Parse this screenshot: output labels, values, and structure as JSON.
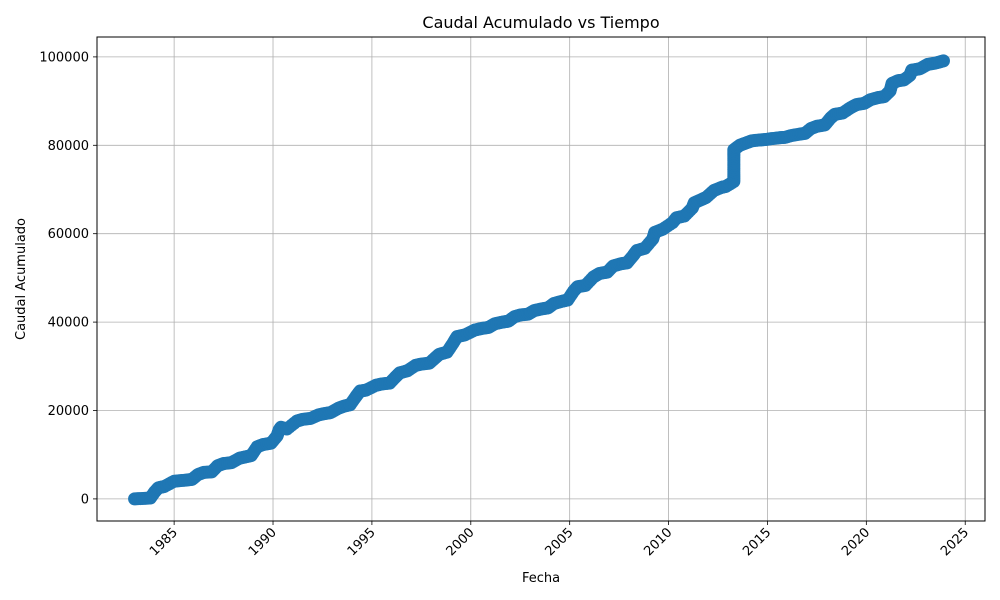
{
  "chart_data": {
    "type": "scatter",
    "title": "Caudal Acumulado vs Tiempo",
    "xlabel": "Fecha",
    "ylabel": "Caudal Acumulado",
    "x_ticks": [
      "1985",
      "1990",
      "1995",
      "2000",
      "2005",
      "2010",
      "2015",
      "2020",
      "2025"
    ],
    "y_ticks": [
      "0",
      "20000",
      "40000",
      "60000",
      "80000",
      "100000"
    ],
    "xlim": [
      1981.1,
      2026.0
    ],
    "ylim": [
      -5000,
      104500
    ],
    "grid": true,
    "marker_color": "#1f77b4",
    "series": [
      {
        "points": [
          [
            1983.0,
            0
          ],
          [
            1983.4,
            100
          ],
          [
            1983.8,
            200
          ],
          [
            1984.0,
            1500
          ],
          [
            1984.2,
            2500
          ],
          [
            1984.5,
            2800
          ],
          [
            1985.0,
            4000
          ],
          [
            1985.5,
            4200
          ],
          [
            1985.9,
            4400
          ],
          [
            1986.2,
            5500
          ],
          [
            1986.5,
            6000
          ],
          [
            1986.9,
            6100
          ],
          [
            1987.2,
            7500
          ],
          [
            1987.5,
            8000
          ],
          [
            1987.9,
            8200
          ],
          [
            1988.3,
            9200
          ],
          [
            1988.6,
            9500
          ],
          [
            1988.9,
            9800
          ],
          [
            1989.2,
            11800
          ],
          [
            1989.5,
            12300
          ],
          [
            1989.9,
            12600
          ],
          [
            1990.2,
            14200
          ],
          [
            1990.3,
            15500
          ],
          [
            1990.4,
            16200
          ],
          [
            1990.7,
            15800
          ],
          [
            1991.2,
            17600
          ],
          [
            1991.5,
            18000
          ],
          [
            1991.9,
            18200
          ],
          [
            1992.3,
            19000
          ],
          [
            1992.6,
            19300
          ],
          [
            1992.9,
            19500
          ],
          [
            1993.3,
            20500
          ],
          [
            1993.6,
            21000
          ],
          [
            1993.9,
            21300
          ],
          [
            1994.2,
            23200
          ],
          [
            1994.4,
            24400
          ],
          [
            1994.7,
            24600
          ],
          [
            1995.2,
            25700
          ],
          [
            1995.5,
            26000
          ],
          [
            1995.9,
            26200
          ],
          [
            1996.2,
            27600
          ],
          [
            1996.4,
            28500
          ],
          [
            1996.8,
            29000
          ],
          [
            1997.2,
            30200
          ],
          [
            1997.5,
            30500
          ],
          [
            1997.9,
            30700
          ],
          [
            1998.2,
            31900
          ],
          [
            1998.4,
            32700
          ],
          [
            1998.8,
            33200
          ],
          [
            1999.1,
            35200
          ],
          [
            1999.3,
            36700
          ],
          [
            1999.7,
            37100
          ],
          [
            2000.2,
            38200
          ],
          [
            2000.6,
            38600
          ],
          [
            2000.9,
            38800
          ],
          [
            2001.2,
            39600
          ],
          [
            2001.6,
            40000
          ],
          [
            2001.9,
            40200
          ],
          [
            2002.2,
            41200
          ],
          [
            2002.5,
            41600
          ],
          [
            2002.9,
            41800
          ],
          [
            2003.2,
            42600
          ],
          [
            2003.6,
            43000
          ],
          [
            2003.9,
            43200
          ],
          [
            2004.2,
            44200
          ],
          [
            2004.6,
            44700
          ],
          [
            2004.9,
            45000
          ],
          [
            2005.2,
            47000
          ],
          [
            2005.4,
            48000
          ],
          [
            2005.8,
            48300
          ],
          [
            2006.2,
            50200
          ],
          [
            2006.5,
            51000
          ],
          [
            2006.9,
            51300
          ],
          [
            2007.2,
            52700
          ],
          [
            2007.6,
            53200
          ],
          [
            2007.9,
            53400
          ],
          [
            2008.2,
            55000
          ],
          [
            2008.4,
            56200
          ],
          [
            2008.8,
            56700
          ],
          [
            2009.2,
            58800
          ],
          [
            2009.3,
            60300
          ],
          [
            2009.7,
            61000
          ],
          [
            2010.2,
            62500
          ],
          [
            2010.4,
            63600
          ],
          [
            2010.8,
            64000
          ],
          [
            2011.2,
            65800
          ],
          [
            2011.3,
            67000
          ],
          [
            2011.7,
            67800
          ],
          [
            2011.9,
            68200
          ],
          [
            2012.3,
            69800
          ],
          [
            2012.7,
            70500
          ],
          [
            2012.9,
            70700
          ],
          [
            2013.3,
            71800
          ],
          [
            2013.3,
            73500
          ],
          [
            2013.3,
            75500
          ],
          [
            2013.3,
            77500
          ],
          [
            2013.3,
            79000
          ],
          [
            2013.6,
            80000
          ],
          [
            2013.9,
            80500
          ],
          [
            2014.2,
            81000
          ],
          [
            2014.6,
            81200
          ],
          [
            2014.9,
            81300
          ],
          [
            2015.2,
            81500
          ],
          [
            2015.6,
            81700
          ],
          [
            2015.9,
            81800
          ],
          [
            2016.2,
            82200
          ],
          [
            2016.6,
            82500
          ],
          [
            2016.9,
            82700
          ],
          [
            2017.2,
            83800
          ],
          [
            2017.5,
            84300
          ],
          [
            2017.9,
            84600
          ],
          [
            2018.2,
            86200
          ],
          [
            2018.4,
            87000
          ],
          [
            2018.8,
            87300
          ],
          [
            2019.2,
            88500
          ],
          [
            2019.5,
            89200
          ],
          [
            2019.9,
            89500
          ],
          [
            2020.2,
            90300
          ],
          [
            2020.6,
            90800
          ],
          [
            2020.9,
            91000
          ],
          [
            2021.2,
            92300
          ],
          [
            2021.3,
            94000
          ],
          [
            2021.6,
            94600
          ],
          [
            2021.9,
            94800
          ],
          [
            2022.2,
            95800
          ],
          [
            2022.3,
            97000
          ],
          [
            2022.7,
            97300
          ],
          [
            2023.1,
            98300
          ],
          [
            2023.5,
            98600
          ],
          [
            2023.9,
            99100
          ]
        ]
      }
    ]
  }
}
